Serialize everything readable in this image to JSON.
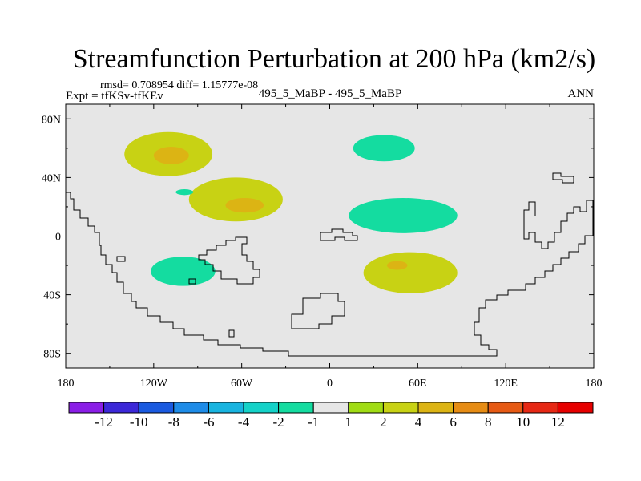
{
  "chart_data": {
    "type": "heatmap",
    "title": "Streamfunction Perturbation at 200 hPa (km2/s)",
    "stats_line": "rmsd= 0.708954 diff= 1.15777e-08",
    "left_label": "Expt = tfKSv-tfKEv",
    "center_label": "495_5_MaBP - 495_5_MaBP",
    "right_label": "ANN",
    "x_axis": {
      "range": [
        -180,
        180
      ],
      "ticks": [
        -180,
        -120,
        -60,
        0,
        60,
        120,
        180
      ],
      "tick_labels": [
        "180",
        "120W",
        "60W",
        "0",
        "60E",
        "120E",
        "180"
      ]
    },
    "y_axis": {
      "range": [
        -90,
        90
      ],
      "ticks": [
        80,
        40,
        0,
        -40,
        -80
      ],
      "tick_labels": [
        "80N",
        "40N",
        "0",
        "40S",
        "80S"
      ]
    },
    "colorbar": {
      "labels": [
        "-12",
        "-10",
        "-8",
        "-6",
        "-4",
        "-2",
        "-1",
        "1",
        "2",
        "4",
        "6",
        "8",
        "10",
        "12"
      ],
      "colors": [
        "#8a1ee6",
        "#3c28d8",
        "#1a5ae0",
        "#1e8ce8",
        "#18b4e0",
        "#14d2c8",
        "#14dca0",
        "#e6e6e6",
        "#a0dc14",
        "#c8d214",
        "#dcb414",
        "#e68c14",
        "#e65a14",
        "#e62814",
        "#e60000"
      ]
    },
    "anomalies": [
      {
        "name": "north-pacific-high",
        "lon": -110,
        "lat": 56,
        "rx": 30,
        "ry": 15,
        "value": 2,
        "core": {
          "lon": -108,
          "lat": 55,
          "rx": 12,
          "ry": 6,
          "value": 4
        }
      },
      {
        "name": "tropical-pacific-high",
        "lon": -64,
        "lat": 25,
        "rx": 32,
        "ry": 15,
        "value": 2,
        "core": {
          "lon": -58,
          "lat": 21,
          "rx": 13,
          "ry": 5,
          "value": 4
        }
      },
      {
        "name": "south-pacific-low",
        "lon": -100,
        "lat": -24,
        "rx": 22,
        "ry": 10,
        "value": -2
      },
      {
        "name": "small-pacific-low",
        "lon": -99,
        "lat": 30,
        "rx": 6,
        "ry": 2,
        "value": -2
      },
      {
        "name": "north-atlantic-low",
        "lon": 37,
        "lat": 60,
        "rx": 21,
        "ry": 9,
        "value": -2
      },
      {
        "name": "africa-low",
        "lon": 50,
        "lat": 14,
        "rx": 37,
        "ry": 12,
        "value": -2
      },
      {
        "name": "indian-ocean-high",
        "lon": 55,
        "lat": -25,
        "rx": 32,
        "ry": 14,
        "value": 2,
        "core": {
          "lon": 46,
          "lat": -20,
          "rx": 7,
          "ry": 3,
          "value": 4
        }
      }
    ]
  }
}
